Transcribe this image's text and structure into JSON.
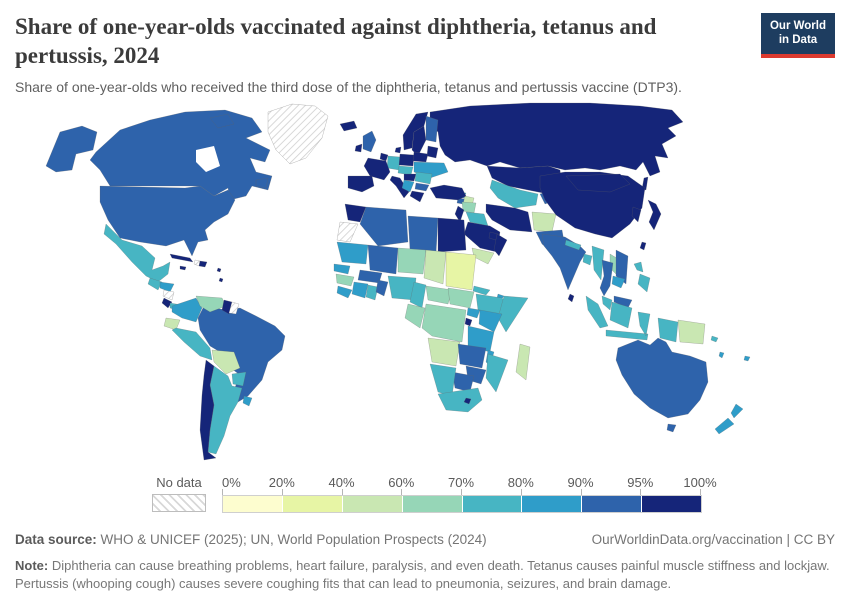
{
  "header": {
    "title": "Share of one-year-olds vaccinated against diphtheria, tetanus and pertussis, 2024",
    "subtitle": "Share of one-year-olds who received the third dose of the diphtheria, tetanus and pertussis vaccine (DTP3)."
  },
  "logo": {
    "line1": "Our World",
    "line2": "in Data",
    "bg": "#1e3d60",
    "accent": "#dc3a2f"
  },
  "legend": {
    "no_data_label": "No data",
    "ticks": [
      "0%",
      "20%",
      "40%",
      "60%",
      "70%",
      "80%",
      "90%",
      "95%",
      "100%"
    ]
  },
  "footer": {
    "source_label": "Data source:",
    "source_text": " WHO & UNICEF (2025); UN, World Population Prospects (2024)",
    "link_text": "OurWorldinData.org/vaccination | CC BY",
    "note_label": "Note:",
    "note_text": " Diphtheria can cause breathing problems, heart failure, paralysis, and even death. Tetanus causes painful muscle stiffness and lockjaw. Pertussis (whooping cough) causes severe coughing fits that can lead to pneumonia, seizures, and brain damage."
  },
  "chart_data": {
    "type": "choropleth_map",
    "title": "Share of one-year-olds vaccinated against diphtheria, tetanus and pertussis",
    "year": 2024,
    "unit": "% of one-year-olds receiving third dose of DTP3 vaccine",
    "legend_position": "bottom",
    "legend_bins": [
      {
        "range": "0-20%",
        "color": "#fdfdcf"
      },
      {
        "range": "20-40%",
        "color": "#e7f5a5"
      },
      {
        "range": "40-60%",
        "color": "#c9e7b2"
      },
      {
        "range": "60-70%",
        "color": "#96d6b7"
      },
      {
        "range": "70-80%",
        "color": "#47b5c3"
      },
      {
        "range": "80-90%",
        "color": "#2f9dc9"
      },
      {
        "range": "90-95%",
        "color": "#2e63ab"
      },
      {
        "range": "95-100%",
        "color": "#152579"
      }
    ],
    "no_data": {
      "label": "No data",
      "pattern": "diagonal-hatch"
    },
    "regions": {
      "canada": "90-95%",
      "usa": "90-95%",
      "greenland": "No data",
      "mexico": "70-80%",
      "guatemala": "70-80%",
      "honduras": "80-90%",
      "nicaragua": "No data",
      "costa-rica": "95-100%",
      "panama": "70-80%",
      "cuba": "95-100%",
      "jamaica": "95-100%",
      "haiti": "No data",
      "dominican-republic": "95-100%",
      "lesser-antilles": "95-100%",
      "colombia": "80-90%",
      "venezuela": "60-70%",
      "guyana": "95-100%",
      "suriname": "No data",
      "ecuador": "40-60%",
      "peru": "70-80%",
      "brazil": "90-95%",
      "bolivia": "40-60%",
      "paraguay": "70-80%",
      "uruguay": "80-90%",
      "argentina": "70-80%",
      "chile": "95-100%",
      "iceland": "95-100%",
      "uk": "90-95%",
      "ireland": "95-100%",
      "norway": "95-100%",
      "sweden": "95-100%",
      "finland": "90-95%",
      "denmark": "95-100%",
      "baltics": "95-100%",
      "germany": "70-80%",
      "low-countries": "95-100%",
      "france": "95-100%",
      "iberia": "95-100%",
      "italy": "95-100%",
      "poland": "95-100%",
      "belarus": "95-100%",
      "czech-austria": "70-80%",
      "hungary": "95-100%",
      "romania": "70-80%",
      "balkans-west": "80-90%",
      "bulgaria": "90-95%",
      "greece": "95-100%",
      "ukraine": "80-90%",
      "russia": "95-100%",
      "kazakhstan": "95-100%",
      "uzbekistan-turkmenistan": "70-80%",
      "kyrgyz-tajik": "90-95%",
      "georgia": "80-90%",
      "armenia": "90-95%",
      "azerbaijan": "40-60%",
      "turkey": "95-100%",
      "syria": "60-70%",
      "iraq": "70-80%",
      "jordan-israel": "95-100%",
      "iran": "95-100%",
      "afghanistan": "40-60%",
      "pakistan": "90-95%",
      "saudi-arabia": "95-100%",
      "yemen": "40-60%",
      "oman": "95-100%",
      "uae-qatar": "95-100%",
      "india": "90-95%",
      "nepal": "70-80%",
      "bangladesh": "70-80%",
      "sri-lanka": "95-100%",
      "myanmar": "70-80%",
      "thailand": "90-95%",
      "laos": "60-70%",
      "vietnam": "90-95%",
      "cambodia": "80-90%",
      "china": "95-100%",
      "mongolia": "95-100%",
      "korea": "95-100%",
      "japan": "95-100%",
      "taiwan": "95-100%",
      "philippines": "70-80%",
      "malaysia": "70-80%",
      "borneo-malaysia": "90-95%",
      "indonesia": "70-80%",
      "papua-new-guinea": "40-60%",
      "solomon-islands": "70-80%",
      "vanuatu": "80-90%",
      "fiji": "80-90%",
      "australia": "90-95%",
      "new-zealand": "80-90%",
      "morocco": "95-100%",
      "western-sahara": "No data",
      "algeria": "90-95%",
      "libya": "90-95%",
      "egypt": "95-100%",
      "mauritania": "80-90%",
      "mali": "90-95%",
      "niger": "60-70%",
      "chad": "40-60%",
      "sudan": "20-40%",
      "eritrea": "70-80%",
      "djibouti": "80-90%",
      "senegal": "80-90%",
      "guinea": "60-70%",
      "sierra-leone-liberia": "80-90%",
      "cote-divoire": "80-90%",
      "ghana": "70-80%",
      "burkina-faso": "90-95%",
      "togo-benin": "90-95%",
      "nigeria": "70-80%",
      "cameroon": "70-80%",
      "central-african-republic": "60-70%",
      "south-sudan": "60-70%",
      "ethiopia": "70-80%",
      "somalia": "70-80%",
      "uganda": "80-90%",
      "kenya": "80-90%",
      "rwanda-burundi": "95-100%",
      "gabon-congo": "60-70%",
      "drc": "60-70%",
      "tanzania": "80-90%",
      "angola": "40-60%",
      "zambia": "90-95%",
      "malawi": "80-90%",
      "mozambique": "70-80%",
      "zimbabwe": "90-95%",
      "botswana": "90-95%",
      "namibia": "70-80%",
      "south-africa": "70-80%",
      "lesotho": "95-100%",
      "madagascar": "40-60%"
    }
  }
}
